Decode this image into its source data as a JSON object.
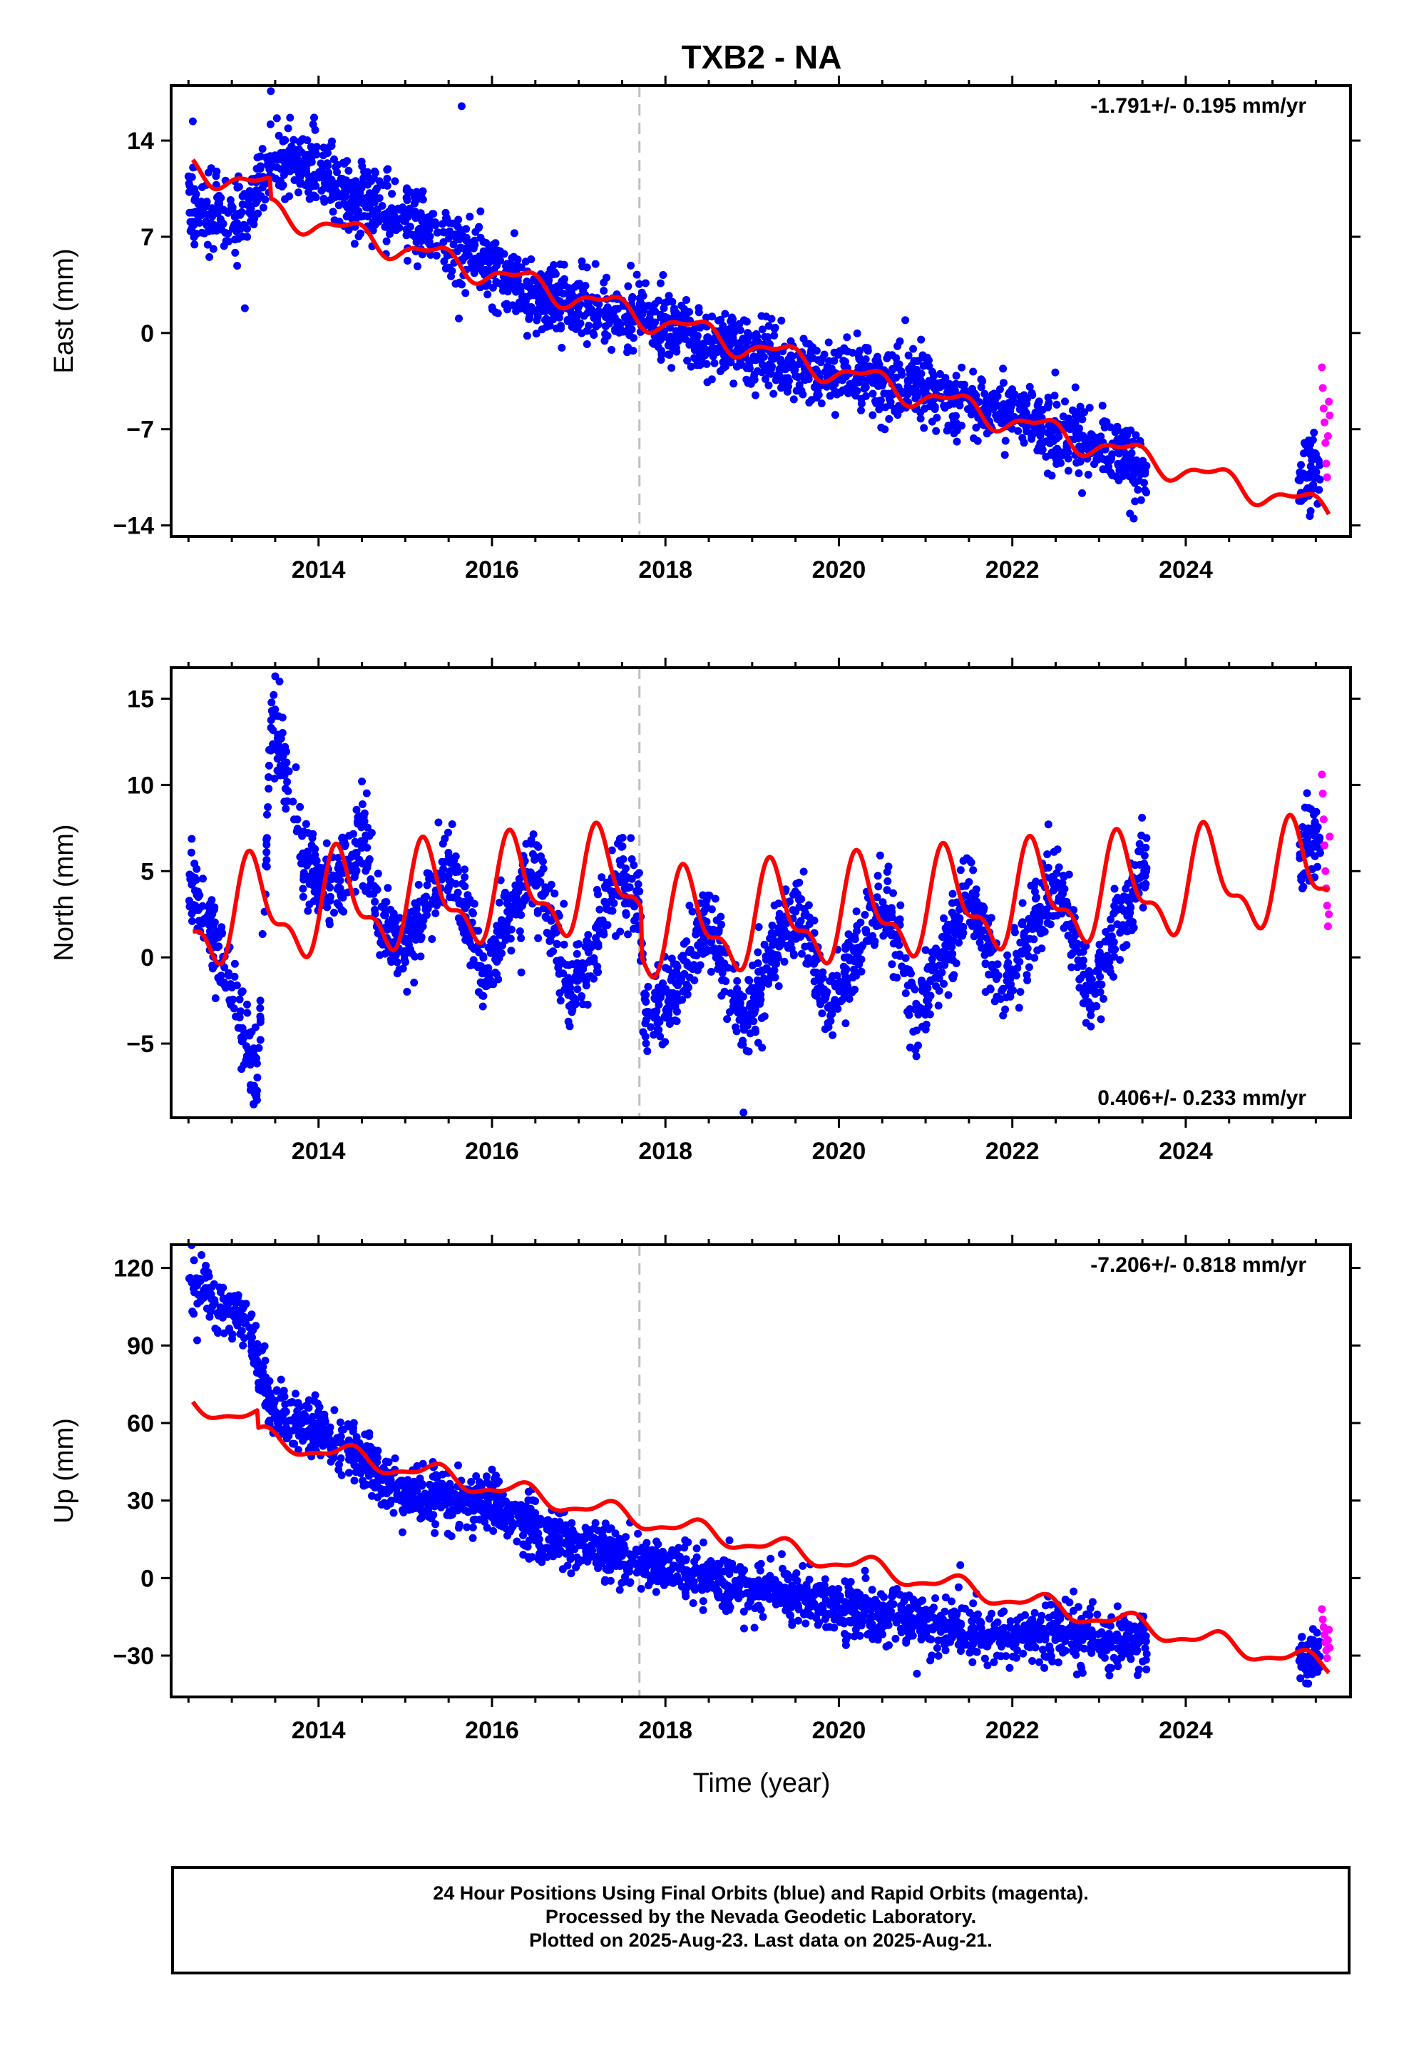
{
  "chart_data": {
    "title": "TXB2 - NA",
    "xlabel": "Time (year)",
    "xlim": [
      2012.3,
      2025.9
    ],
    "x_ticks": [
      "2014",
      "2016",
      "2018",
      "2020",
      "2022",
      "2024"
    ],
    "event_line_x": 2017.7,
    "colors": {
      "final_orbits": "#0000ff",
      "rapid_orbits": "#ff00ff",
      "model": "#ff0000",
      "event_line": "#c0c0c0"
    },
    "panels": [
      {
        "type": "scatter",
        "ylabel": "East (mm)",
        "ylim": [
          -14.8,
          18.0
        ],
        "y_ticks": [
          "14",
          "7",
          "0",
          "−7",
          "−14"
        ],
        "y_tick_values": [
          14,
          7,
          0,
          -7,
          -14
        ],
        "rate_label": "-1.791+/- 0.195 mm/yr",
        "rate_position": "top-right",
        "final_range": [
          2012.5,
          2023.55
        ],
        "gap": [
          2024.0,
          2025.3
        ],
        "final_end": 2025.55,
        "series": [
          {
            "name": "Final Orbits (blue)",
            "trend_points": [
              [
                2012.55,
                9.5
              ],
              [
                2013.1,
                8.0
              ],
              [
                2013.45,
                12.5
              ],
              [
                2014.0,
                12.0
              ],
              [
                2014.5,
                9.5
              ],
              [
                2015.0,
                8.5
              ],
              [
                2015.5,
                6.5
              ],
              [
                2016.0,
                5.0
              ],
              [
                2016.5,
                2.5
              ],
              [
                2017.0,
                2.2
              ],
              [
                2017.7,
                1.3
              ],
              [
                2018.0,
                0.5
              ],
              [
                2018.5,
                -0.5
              ],
              [
                2019.0,
                -1.2
              ],
              [
                2019.5,
                -2.5
              ],
              [
                2020.0,
                -3.0
              ],
              [
                2020.5,
                -3.5
              ],
              [
                2021.0,
                -3.8
              ],
              [
                2021.5,
                -5.3
              ],
              [
                2022.0,
                -5.5
              ],
              [
                2022.5,
                -7.5
              ],
              [
                2023.0,
                -8.0
              ],
              [
                2023.55,
                -10.0
              ],
              [
                2025.3,
                -10.5
              ],
              [
                2025.55,
                -10.2
              ]
            ],
            "scatter_sd": 1.3,
            "outliers": [
              [
                2013.45,
                17.6
              ],
              [
                2015.65,
                16.5
              ],
              [
                2012.55,
                15.4
              ],
              [
                2013.15,
                1.8
              ],
              [
                2023.4,
                -13.5
              ]
            ]
          },
          {
            "name": "Rapid Orbits (magenta)",
            "points": [
              [
                2025.57,
                -2.5
              ],
              [
                2025.58,
                -4.0
              ],
              [
                2025.59,
                -5.5
              ],
              [
                2025.6,
                -6.5
              ],
              [
                2025.61,
                -8.0
              ],
              [
                2025.62,
                -9.5
              ],
              [
                2025.63,
                -10.5
              ],
              [
                2025.64,
                -7.5
              ],
              [
                2025.65,
                -5.0
              ],
              [
                2025.66,
                -6.0
              ]
            ]
          },
          {
            "name": "model",
            "trend": {
              "t0": 2017.7,
              "b0": 1.3,
              "rate": -1.791
            },
            "seasonal": [
              {
                "amp": 0.8,
                "period": 1.0,
                "phase": 0.1
              },
              {
                "amp": 0.35,
                "period": 0.5,
                "phase": 0.4
              }
            ],
            "offsets": [
              [
                2013.45,
                -1.5
              ]
            ]
          }
        ]
      },
      {
        "type": "scatter",
        "ylabel": "North (mm)",
        "ylim": [
          -9.3,
          16.8
        ],
        "y_ticks": [
          "15",
          "10",
          "5",
          "0",
          "−5"
        ],
        "y_tick_values": [
          15,
          10,
          5,
          0,
          -5
        ],
        "rate_label": "0.406+/- 0.233 mm/yr",
        "rate_position": "bottom-right",
        "final_range": [
          2012.5,
          2023.55
        ],
        "gap": [
          2024.0,
          2025.3
        ],
        "final_end": 2025.55,
        "series": [
          {
            "name": "Final Orbits (blue)",
            "trend_points": [
              [
                2012.55,
                4.0
              ],
              [
                2012.9,
                0.0
              ],
              [
                2013.2,
                -5.5
              ],
              [
                2013.3,
                -7.5
              ],
              [
                2013.45,
                13.5
              ],
              [
                2013.6,
                11.0
              ],
              [
                2013.8,
                5.5
              ],
              [
                2014.2,
                4.0
              ],
              [
                2014.5,
                7.5
              ],
              [
                2014.7,
                2.0
              ],
              [
                2015.0,
                0.5
              ],
              [
                2015.5,
                5.5
              ],
              [
                2015.9,
                -1.0
              ],
              [
                2016.5,
                5.5
              ],
              [
                2016.9,
                -2.0
              ],
              [
                2017.5,
                4.5
              ],
              [
                2017.7,
                3.0
              ],
              [
                2017.75,
                -3.0
              ],
              [
                2018.0,
                -3.0
              ],
              [
                2018.5,
                2.0
              ],
              [
                2018.9,
                -4.0
              ],
              [
                2019.5,
                3.0
              ],
              [
                2019.9,
                -3.0
              ],
              [
                2020.5,
                3.5
              ],
              [
                2020.9,
                -3.0
              ],
              [
                2021.5,
                3.5
              ],
              [
                2021.9,
                -2.0
              ],
              [
                2022.5,
                4.5
              ],
              [
                2022.9,
                -2.0
              ],
              [
                2023.5,
                5.0
              ],
              [
                2025.3,
                5.5
              ],
              [
                2025.55,
                7.0
              ]
            ],
            "scatter_sd": 1.2,
            "outliers": [
              [
                2013.5,
                16.3
              ],
              [
                2013.55,
                16.0
              ],
              [
                2013.25,
                -8.5
              ],
              [
                2018.9,
                -9.0
              ],
              [
                2014.5,
                10.2
              ]
            ]
          },
          {
            "name": "Rapid Orbits (magenta)",
            "points": [
              [
                2025.57,
                10.6
              ],
              [
                2025.58,
                9.5
              ],
              [
                2025.59,
                8.0
              ],
              [
                2025.6,
                6.5
              ],
              [
                2025.61,
                5.0
              ],
              [
                2025.62,
                4.0
              ],
              [
                2025.63,
                3.0
              ],
              [
                2025.64,
                1.8
              ],
              [
                2025.65,
                2.5
              ],
              [
                2025.66,
                7.0
              ]
            ]
          },
          {
            "name": "model",
            "trend": {
              "t0": 2017.7,
              "b0": 1.6,
              "rate": 0.406
            },
            "seasonal": [
              {
                "amp": 2.6,
                "period": 1.0,
                "phase": 0.0
              },
              {
                "amp": 1.2,
                "period": 0.5,
                "phase": 0.05
              }
            ],
            "offsets": [
              [
                2017.72,
                -2.8
              ]
            ]
          }
        ]
      },
      {
        "type": "scatter",
        "ylabel": "Up (mm)",
        "ylim": [
          -46,
          129
        ],
        "y_ticks": [
          "120",
          "90",
          "60",
          "30",
          "0",
          "−30"
        ],
        "y_tick_values": [
          120,
          90,
          60,
          30,
          0,
          -30
        ],
        "rate_label": "-7.206+/- 0.818 mm/yr",
        "rate_position": "top-right",
        "final_range": [
          2012.5,
          2023.55
        ],
        "gap": [
          2024.0,
          2025.3
        ],
        "final_end": 2025.55,
        "series": [
          {
            "name": "Final Orbits (blue)",
            "trend_points": [
              [
                2012.55,
                115
              ],
              [
                2013.2,
                96
              ],
              [
                2013.45,
                67
              ],
              [
                2014.0,
                56
              ],
              [
                2014.5,
                47
              ],
              [
                2015.0,
                32
              ],
              [
                2016.0,
                28
              ],
              [
                2016.5,
                18
              ],
              [
                2017.0,
                12
              ],
              [
                2017.7,
                8
              ],
              [
                2018.0,
                3
              ],
              [
                2018.5,
                0
              ],
              [
                2019.0,
                -5
              ],
              [
                2019.5,
                -7
              ],
              [
                2020.0,
                -13
              ],
              [
                2020.5,
                -13
              ],
              [
                2021.0,
                -17
              ],
              [
                2021.5,
                -20
              ],
              [
                2022.0,
                -22
              ],
              [
                2022.5,
                -20
              ],
              [
                2023.0,
                -23
              ],
              [
                2023.55,
                -26
              ],
              [
                2025.3,
                -32
              ],
              [
                2025.55,
                -30
              ]
            ],
            "scatter_sd": 5.5,
            "outliers": [
              [
                2012.65,
                125
              ],
              [
                2012.6,
                92
              ],
              [
                2016.0,
                42
              ],
              [
                2021.4,
                5
              ],
              [
                2020.9,
                -37
              ]
            ]
          },
          {
            "name": "Rapid Orbits (magenta)",
            "points": [
              [
                2025.57,
                -12
              ],
              [
                2025.58,
                -16
              ],
              [
                2025.59,
                -19
              ],
              [
                2025.6,
                -22
              ],
              [
                2025.61,
                -25
              ],
              [
                2025.62,
                -28
              ],
              [
                2025.63,
                -31
              ],
              [
                2025.64,
                -24
              ],
              [
                2025.65,
                -20
              ],
              [
                2025.66,
                -27
              ]
            ]
          },
          {
            "name": "model",
            "trend": {
              "t0": 2017.7,
              "b0": 23.0,
              "rate": -7.206
            },
            "seasonal": [
              {
                "amp": 3.5,
                "period": 1.0,
                "phase": 0.1
              },
              {
                "amp": 1.3,
                "period": 0.5,
                "phase": 0.3
              }
            ],
            "offsets": [
              [
                2013.3,
                -7.0
              ]
            ]
          }
        ]
      }
    ]
  },
  "caption": {
    "line1": "24 Hour Positions Using Final Orbits (blue) and Rapid Orbits (magenta).",
    "line2": "Processed by the Nevada Geodetic Laboratory.",
    "line3": "Plotted on 2025-Aug-23. Last data on 2025-Aug-21."
  }
}
